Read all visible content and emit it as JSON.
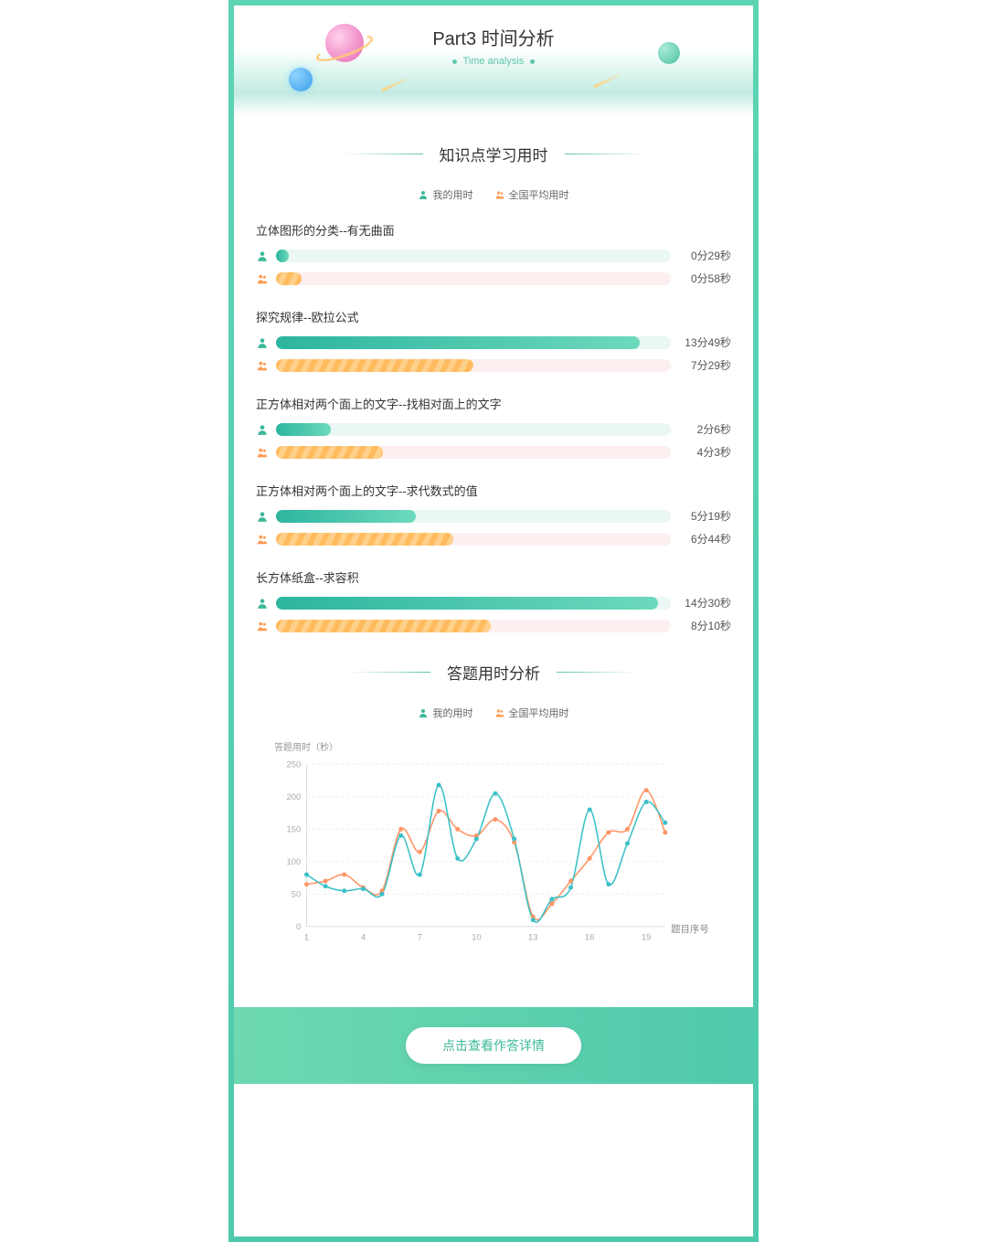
{
  "header": {
    "title": "Part3 时间分析",
    "subtitle": "Time analysis"
  },
  "section1": {
    "title": "知识点学习用时",
    "legend_my": "我的用时",
    "legend_avg": "全国平均用时",
    "max_seconds": 900,
    "colors": {
      "my_icon": "#3cb99a",
      "avg_icon": "#ff9b52",
      "my_bar_from": "#2cb5a0",
      "my_bar_to": "#6dd9bc",
      "avg_bar_a": "#ffbb5e",
      "avg_bar_b": "#ffd08a",
      "my_track": "#eaf7f4",
      "avg_track": "#fdeff0"
    },
    "topics": [
      {
        "title": "立体图形的分类--有无曲面",
        "my_label": "0分29秒",
        "avg_label": "0分58秒",
        "my_sec": 29,
        "avg_sec": 58
      },
      {
        "title": "探究规律--欧拉公式",
        "my_label": "13分49秒",
        "avg_label": "7分29秒",
        "my_sec": 829,
        "avg_sec": 449
      },
      {
        "title": "正方体相对两个面上的文字--找相对面上的文字",
        "my_label": "2分6秒",
        "avg_label": "4分3秒",
        "my_sec": 126,
        "avg_sec": 243
      },
      {
        "title": "正方体相对两个面上的文字--求代数式的值",
        "my_label": "5分19秒",
        "avg_label": "6分44秒",
        "my_sec": 319,
        "avg_sec": 404
      },
      {
        "title": "长方体纸盒--求容积",
        "my_label": "14分30秒",
        "avg_label": "8分10秒",
        "my_sec": 870,
        "avg_sec": 490
      }
    ]
  },
  "section2": {
    "title": "答题用时分析",
    "legend_my": "我的用时",
    "legend_avg": "全国平均用时",
    "y_title": "答题用时（秒）",
    "x_title": "题目序号",
    "y_ticks": [
      0,
      50,
      100,
      150,
      200,
      250
    ],
    "x_ticks": [
      1,
      4,
      7,
      10,
      13,
      16,
      19
    ],
    "ylim": [
      0,
      250
    ],
    "xlim": [
      1,
      20
    ],
    "colors": {
      "my": "#3cc0c8",
      "avg": "#ff9566",
      "grid": "#eeeeee",
      "axis": "#dddddd",
      "tick_text": "#aaaaaa"
    },
    "my_series": [
      80,
      62,
      55,
      58,
      50,
      140,
      80,
      218,
      105,
      135,
      205,
      135,
      10,
      42,
      60,
      180,
      65,
      128,
      192,
      160
    ],
    "avg_series": [
      65,
      70,
      80,
      60,
      55,
      150,
      115,
      178,
      150,
      140,
      165,
      130,
      15,
      35,
      70,
      105,
      145,
      150,
      210,
      145
    ]
  },
  "footer": {
    "button": "点击查看作答详情"
  }
}
